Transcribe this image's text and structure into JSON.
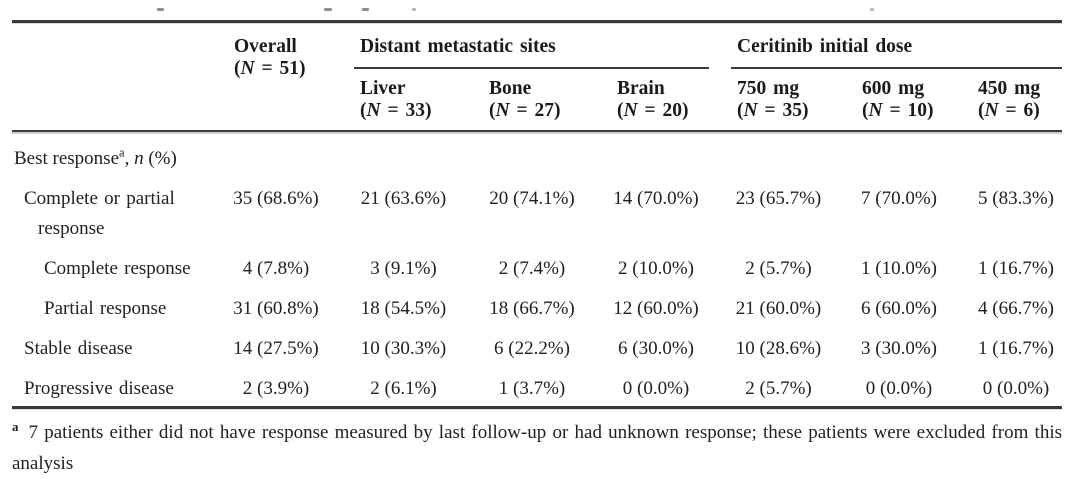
{
  "table": {
    "header": {
      "overall": {
        "title": "Overall",
        "n": "(N = 51)"
      },
      "groups": [
        {
          "title": "Distant metastatic sites",
          "columns": [
            {
              "title": "Liver",
              "n": "(N = 33)"
            },
            {
              "title": "Bone",
              "n": "(N = 27)"
            },
            {
              "title": "Brain",
              "n": "(N = 20)"
            }
          ]
        },
        {
          "title": "Ceritinib initial dose",
          "columns": [
            {
              "title": "750 mg",
              "n": "(N = 35)"
            },
            {
              "title": "600 mg",
              "n": "(N = 10)"
            },
            {
              "title": "450 mg",
              "n": "(N = 6)"
            }
          ]
        }
      ]
    },
    "section": {
      "label": "Best response",
      "marker": "a",
      "sep": ", ",
      "var": "n",
      "suffix": " (%)"
    },
    "rows": [
      {
        "label": "Complete or partial response",
        "indent": 1,
        "values": [
          "35 (68.6%)",
          "21 (63.6%)",
          "20 (74.1%)",
          "14 (70.0%)",
          "23 (65.7%)",
          "7 (70.0%)",
          "5 (83.3%)"
        ]
      },
      {
        "label": "Complete response",
        "indent": 2,
        "values": [
          "4 (7.8%)",
          "3 (9.1%)",
          "2 (7.4%)",
          "2 (10.0%)",
          "2 (5.7%)",
          "1 (10.0%)",
          "1 (16.7%)"
        ]
      },
      {
        "label": "Partial response",
        "indent": 2,
        "values": [
          "31 (60.8%)",
          "18 (54.5%)",
          "18 (66.7%)",
          "12 (60.0%)",
          "21 (60.0%)",
          "6 (60.0%)",
          "4 (66.7%)"
        ]
      },
      {
        "label": "Stable disease",
        "indent": 1,
        "values": [
          "14 (27.5%)",
          "10 (30.3%)",
          "6 (22.2%)",
          "6 (30.0%)",
          "10 (28.6%)",
          "3 (30.0%)",
          "1 (16.7%)"
        ]
      },
      {
        "label": "Progressive disease",
        "indent": 1,
        "values": [
          "2 (3.9%)",
          "2 (6.1%)",
          "1 (3.7%)",
          "0 (0.0%)",
          "2 (5.7%)",
          "0 (0.0%)",
          "0 (0.0%)"
        ]
      }
    ],
    "footnote": {
      "marker": "a",
      "text": "7 patients either did not have response measured by last follow-up or had unknown response; these patients were excluded from this analysis"
    }
  },
  "colors": {
    "text": "#212123",
    "rule": "#39393b",
    "background": "#ffffff"
  }
}
